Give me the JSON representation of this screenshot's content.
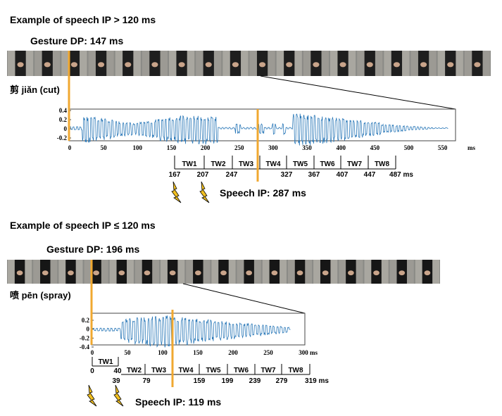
{
  "panels": [
    {
      "heading": "Example of speech IP > 120 ms",
      "gesture_dp": "Gesture DP: 147 ms",
      "word": "剪 jiǎn (cut)",
      "y_ticks": [
        "0.4",
        "0.2",
        "0",
        "-0.2"
      ],
      "x_ticks": [
        "0",
        "50",
        "100",
        "150",
        "200",
        "250",
        "300",
        "350",
        "400",
        "450",
        "500",
        "550"
      ],
      "x_unit": "ms",
      "tw_labels": [
        "TW1",
        "TW2",
        "TW3",
        "TW4",
        "TW5",
        "TW6",
        "TW7",
        "TW8"
      ],
      "tw_numbers": [
        "167",
        "207",
        "247",
        "327",
        "367",
        "407",
        "447",
        "487 ms"
      ],
      "speech_ip": "Speech IP: 287 ms"
    },
    {
      "heading": "Example of speech IP ≤ 120 ms",
      "gesture_dp": "Gesture DP: 196 ms",
      "word": "喷 pēn (spray)",
      "y_ticks": [
        "0.2",
        "0",
        "-0.2",
        "-0.4"
      ],
      "x_ticks": [
        "0",
        "50",
        "100",
        "150",
        "200",
        "250",
        "300"
      ],
      "x_unit": "ms",
      "tw1_label": "TW1",
      "tw1_numbers": [
        "0",
        "40"
      ],
      "tw_labels": [
        "TW2",
        "TW3",
        "TW4",
        "TW5",
        "TW6",
        "TW7",
        "TW8"
      ],
      "tw_numbers": [
        "39",
        "79",
        "159",
        "199",
        "239",
        "279",
        "319 ms"
      ],
      "speech_ip": "Speech IP: 119 ms"
    }
  ],
  "colors": {
    "marker": "#f0a830",
    "wave": "#2a78b8",
    "lightning": "#f2c020"
  }
}
